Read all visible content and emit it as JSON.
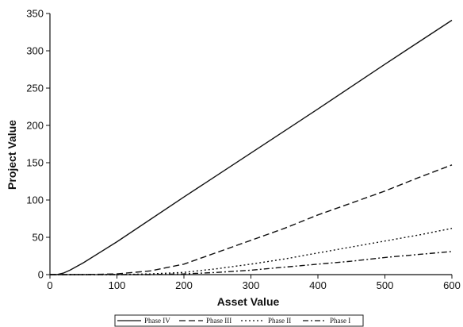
{
  "chart_data": {
    "type": "line",
    "title": "",
    "xlabel": "Asset Value",
    "ylabel": "Project Value",
    "xlim": [
      0,
      600
    ],
    "ylim": [
      0,
      350
    ],
    "x_ticks": [
      0,
      100,
      200,
      300,
      400,
      500,
      600
    ],
    "y_ticks": [
      0,
      50,
      100,
      150,
      200,
      250,
      300,
      350
    ],
    "grid": false,
    "legend_position": "bottom",
    "series": [
      {
        "name": "Phase IV",
        "style": "solid",
        "x": [
          0,
          10,
          20,
          30,
          50,
          100,
          200,
          300,
          400,
          500,
          600
        ],
        "y": [
          0,
          0,
          2,
          6,
          16,
          44,
          104,
          163,
          222,
          282,
          341
        ]
      },
      {
        "name": "Phase III",
        "style": "dashed",
        "x": [
          0,
          50,
          100,
          150,
          200,
          250,
          300,
          350,
          400,
          450,
          500,
          550,
          600
        ],
        "y": [
          0,
          0,
          1,
          5,
          14,
          30,
          46,
          62,
          80,
          96,
          112,
          130,
          147
        ]
      },
      {
        "name": "Phase II",
        "style": "dotted",
        "x": [
          0,
          100,
          150,
          200,
          250,
          300,
          350,
          400,
          450,
          500,
          550,
          600
        ],
        "y": [
          0,
          0,
          1,
          3,
          8,
          14,
          21,
          29,
          37,
          45,
          53,
          62
        ]
      },
      {
        "name": "Phase I",
        "style": "dashdot",
        "x": [
          0,
          150,
          200,
          250,
          300,
          350,
          400,
          450,
          500,
          550,
          600
        ],
        "y": [
          0,
          0,
          1,
          3,
          6,
          10,
          14,
          18,
          23,
          27,
          31
        ]
      }
    ]
  }
}
